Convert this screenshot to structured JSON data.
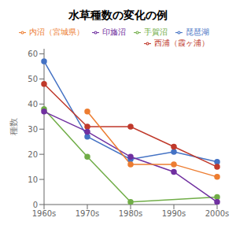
{
  "chart_data": {
    "type": "line",
    "title": "水草種数の変化の例",
    "y_label": "種数",
    "categories": [
      "1960s",
      "1970s",
      "1980s",
      "1990s",
      "2000s"
    ],
    "series": [
      {
        "name": "琵琶湖",
        "color": "#4472C4",
        "values": [
          57,
          27,
          18,
          21,
          17
        ]
      },
      {
        "name": "西浦（霞ヶ浦）",
        "color": "#C0392B",
        "values": [
          48,
          31,
          31,
          23,
          15
        ]
      },
      {
        "name": "手賀沼",
        "color": "#70AD47",
        "values": [
          38,
          19,
          1,
          null,
          3
        ]
      },
      {
        "name": "印旛沼",
        "color": "#7030A0",
        "values": [
          37,
          29,
          19,
          13,
          1
        ]
      },
      {
        "name": "内沼（宮城県）",
        "color": "#ED7D31",
        "values": [
          null,
          37,
          16,
          16,
          11
        ]
      }
    ],
    "ylim": [
      0,
      62
    ],
    "yticks": [
      0,
      10,
      20,
      30,
      40,
      50,
      60
    ],
    "marker": "circle",
    "legend": "upper right",
    "grid": false
  }
}
